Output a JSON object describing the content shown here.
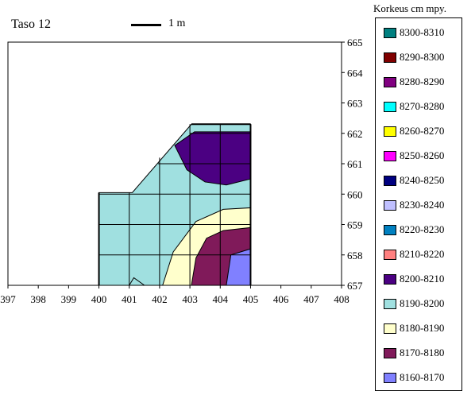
{
  "chart_data": {
    "type": "area",
    "title": "Taso 12",
    "scale_bar": {
      "label": "1 m"
    },
    "xlabel": "",
    "ylabel": "",
    "xlim": [
      397,
      408
    ],
    "ylim": [
      657,
      665
    ],
    "xticks": [
      "397",
      "398",
      "399",
      "400",
      "401",
      "402",
      "403",
      "404",
      "405",
      "406",
      "407",
      "408"
    ],
    "yticks": [
      "657",
      "658",
      "659",
      "660",
      "661",
      "662",
      "663",
      "664",
      "665"
    ],
    "grid": "inner-columns",
    "legend": {
      "title": "Korkeus cm mpy.",
      "placement": "right",
      "entries": [
        {
          "label": "8300-8310",
          "color": "#008080"
        },
        {
          "label": "8290-8300",
          "color": "#800000"
        },
        {
          "label": "8280-8290",
          "color": "#800080"
        },
        {
          "label": "8270-8280",
          "color": "#00ffff"
        },
        {
          "label": "8260-8270",
          "color": "#ffff00"
        },
        {
          "label": "8250-8260",
          "color": "#ff00ff"
        },
        {
          "label": "8240-8250",
          "color": "#000080"
        },
        {
          "label": "8230-8240",
          "color": "#c0c0ff"
        },
        {
          "label": "8220-8230",
          "color": "#0080c0"
        },
        {
          "label": "8210-8220",
          "color": "#ff8080"
        },
        {
          "label": "8200-8210",
          "color": "#4b0082"
        },
        {
          "label": "8190-8200",
          "color": "#a0e0e0"
        },
        {
          "label": "8180-8190",
          "color": "#ffffcc"
        },
        {
          "label": "8170-8180",
          "color": "#801a5a"
        },
        {
          "label": "8160-8170",
          "color": "#8080ff"
        }
      ]
    },
    "regions": [
      {
        "range": "8190-8200",
        "color": "#a0e0e0",
        "points": [
          [
            400,
            657
          ],
          [
            400,
            660.05
          ],
          [
            401.1,
            660.05
          ],
          [
            403.05,
            662.3
          ],
          [
            405,
            662.3
          ],
          [
            405,
            657
          ]
        ]
      },
      {
        "range": "8180-8190",
        "color": "#ffffcc",
        "points": [
          [
            402.1,
            657
          ],
          [
            402.45,
            658.1
          ],
          [
            403.2,
            659.1
          ],
          [
            404.1,
            659.5
          ],
          [
            405,
            659.55
          ],
          [
            405,
            657
          ]
        ]
      },
      {
        "range": "8190-8200",
        "color": "#a0e0e0",
        "points": [
          [
            401,
            657
          ],
          [
            401.15,
            657.25
          ],
          [
            401.5,
            657
          ]
        ]
      },
      {
        "range": "8170-8180",
        "color": "#801a5a",
        "points": [
          [
            403.05,
            657
          ],
          [
            403.2,
            657.9
          ],
          [
            403.55,
            658.55
          ],
          [
            404.1,
            658.8
          ],
          [
            405,
            658.9
          ],
          [
            405,
            657
          ]
        ]
      },
      {
        "range": "8160-8170",
        "color": "#8080ff",
        "points": [
          [
            404.2,
            657
          ],
          [
            404.35,
            658
          ],
          [
            405,
            658.2
          ],
          [
            405,
            657
          ]
        ]
      },
      {
        "range": "8200-8210",
        "color": "#4b0082",
        "points": [
          [
            402.5,
            661.6
          ],
          [
            402.9,
            660.8
          ],
          [
            403.5,
            660.4
          ],
          [
            404.2,
            660.3
          ],
          [
            405,
            660.5
          ],
          [
            405,
            662.05
          ],
          [
            403.15,
            662.05
          ]
        ]
      }
    ]
  }
}
